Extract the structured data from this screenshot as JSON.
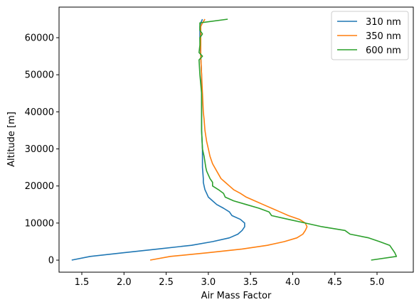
{
  "chart_data": {
    "type": "line",
    "xlabel": "Air Mass Factor",
    "ylabel": "Altitude [m]",
    "xlim": [
      1.23,
      5.43
    ],
    "ylim": [
      -3250,
      68250
    ],
    "xticks": [
      1.5,
      2.0,
      2.5,
      3.0,
      3.5,
      4.0,
      4.5,
      5.0
    ],
    "xtick_labels": [
      "1.5",
      "2.0",
      "2.5",
      "3.0",
      "3.5",
      "4.0",
      "4.5",
      "5.0"
    ],
    "yticks": [
      0,
      10000,
      20000,
      30000,
      40000,
      50000,
      60000
    ],
    "ytick_labels": [
      "0",
      "10000",
      "20000",
      "30000",
      "40000",
      "50000",
      "60000"
    ],
    "grid": false,
    "legend_position": "top-right",
    "series": [
      {
        "name": "310 nm",
        "color": "#1f77b4",
        "points": [
          [
            1.38,
            0
          ],
          [
            1.6,
            1000
          ],
          [
            2.0,
            2000
          ],
          [
            2.4,
            3000
          ],
          [
            2.8,
            4000
          ],
          [
            3.05,
            5000
          ],
          [
            3.25,
            6000
          ],
          [
            3.35,
            7000
          ],
          [
            3.4,
            8000
          ],
          [
            3.43,
            9000
          ],
          [
            3.43,
            10000
          ],
          [
            3.38,
            11000
          ],
          [
            3.28,
            12000
          ],
          [
            3.25,
            13000
          ],
          [
            3.18,
            14000
          ],
          [
            3.1,
            15000
          ],
          [
            3.05,
            16000
          ],
          [
            3.0,
            17000
          ],
          [
            2.98,
            18000
          ],
          [
            2.96,
            19000
          ],
          [
            2.95,
            20000
          ],
          [
            2.94,
            21000
          ],
          [
            2.94,
            22000
          ],
          [
            2.93,
            25000
          ],
          [
            2.93,
            30000
          ],
          [
            2.92,
            35000
          ],
          [
            2.92,
            40000
          ],
          [
            2.92,
            45000
          ],
          [
            2.92,
            50000
          ],
          [
            2.91,
            55000
          ],
          [
            2.9,
            60000
          ],
          [
            2.9,
            62000
          ],
          [
            2.9,
            63000
          ],
          [
            2.91,
            64000
          ],
          [
            2.93,
            65000
          ]
        ]
      },
      {
        "name": "350 nm",
        "color": "#ff7f0e",
        "points": [
          [
            2.31,
            0
          ],
          [
            2.55,
            1000
          ],
          [
            3.0,
            2000
          ],
          [
            3.4,
            3000
          ],
          [
            3.7,
            4000
          ],
          [
            3.9,
            5000
          ],
          [
            4.05,
            6000
          ],
          [
            4.12,
            7000
          ],
          [
            4.15,
            8000
          ],
          [
            4.17,
            9000
          ],
          [
            4.15,
            10000
          ],
          [
            4.08,
            11000
          ],
          [
            3.95,
            12000
          ],
          [
            3.85,
            13000
          ],
          [
            3.75,
            14000
          ],
          [
            3.65,
            15000
          ],
          [
            3.55,
            16000
          ],
          [
            3.45,
            17000
          ],
          [
            3.38,
            18000
          ],
          [
            3.3,
            19000
          ],
          [
            3.25,
            20000
          ],
          [
            3.2,
            21000
          ],
          [
            3.15,
            22000
          ],
          [
            3.1,
            24000
          ],
          [
            3.05,
            26000
          ],
          [
            3.02,
            28000
          ],
          [
            3.0,
            30000
          ],
          [
            2.98,
            32000
          ],
          [
            2.96,
            35000
          ],
          [
            2.95,
            38000
          ],
          [
            2.94,
            40000
          ],
          [
            2.93,
            45000
          ],
          [
            2.92,
            50000
          ],
          [
            2.91,
            55000
          ],
          [
            2.91,
            60000
          ],
          [
            2.91,
            63000
          ],
          [
            2.93,
            64000
          ],
          [
            2.96,
            65000
          ]
        ]
      },
      {
        "name": "600 nm",
        "color": "#2ca02c",
        "points": [
          [
            4.93,
            0
          ],
          [
            5.23,
            1000
          ],
          [
            5.21,
            2000
          ],
          [
            5.18,
            3000
          ],
          [
            5.15,
            4000
          ],
          [
            5.03,
            5000
          ],
          [
            4.9,
            6000
          ],
          [
            4.68,
            7000
          ],
          [
            4.62,
            8000
          ],
          [
            4.35,
            9000
          ],
          [
            4.15,
            10000
          ],
          [
            3.95,
            11000
          ],
          [
            3.75,
            12000
          ],
          [
            3.72,
            13000
          ],
          [
            3.6,
            14000
          ],
          [
            3.45,
            15000
          ],
          [
            3.3,
            16000
          ],
          [
            3.2,
            17000
          ],
          [
            3.18,
            18000
          ],
          [
            3.12,
            19000
          ],
          [
            3.05,
            20000
          ],
          [
            3.05,
            21000
          ],
          [
            3.02,
            22000
          ],
          [
            2.98,
            24000
          ],
          [
            2.97,
            25000
          ],
          [
            2.95,
            28000
          ],
          [
            2.93,
            30000
          ],
          [
            2.92,
            35000
          ],
          [
            2.92,
            40000
          ],
          [
            2.92,
            45000
          ],
          [
            2.9,
            50000
          ],
          [
            2.89,
            54000
          ],
          [
            2.93,
            55000
          ],
          [
            2.89,
            56000
          ],
          [
            2.9,
            58000
          ],
          [
            2.9,
            60000
          ],
          [
            2.93,
            61000
          ],
          [
            2.9,
            62000
          ],
          [
            2.9,
            64000
          ],
          [
            3.23,
            65000
          ]
        ]
      }
    ]
  }
}
